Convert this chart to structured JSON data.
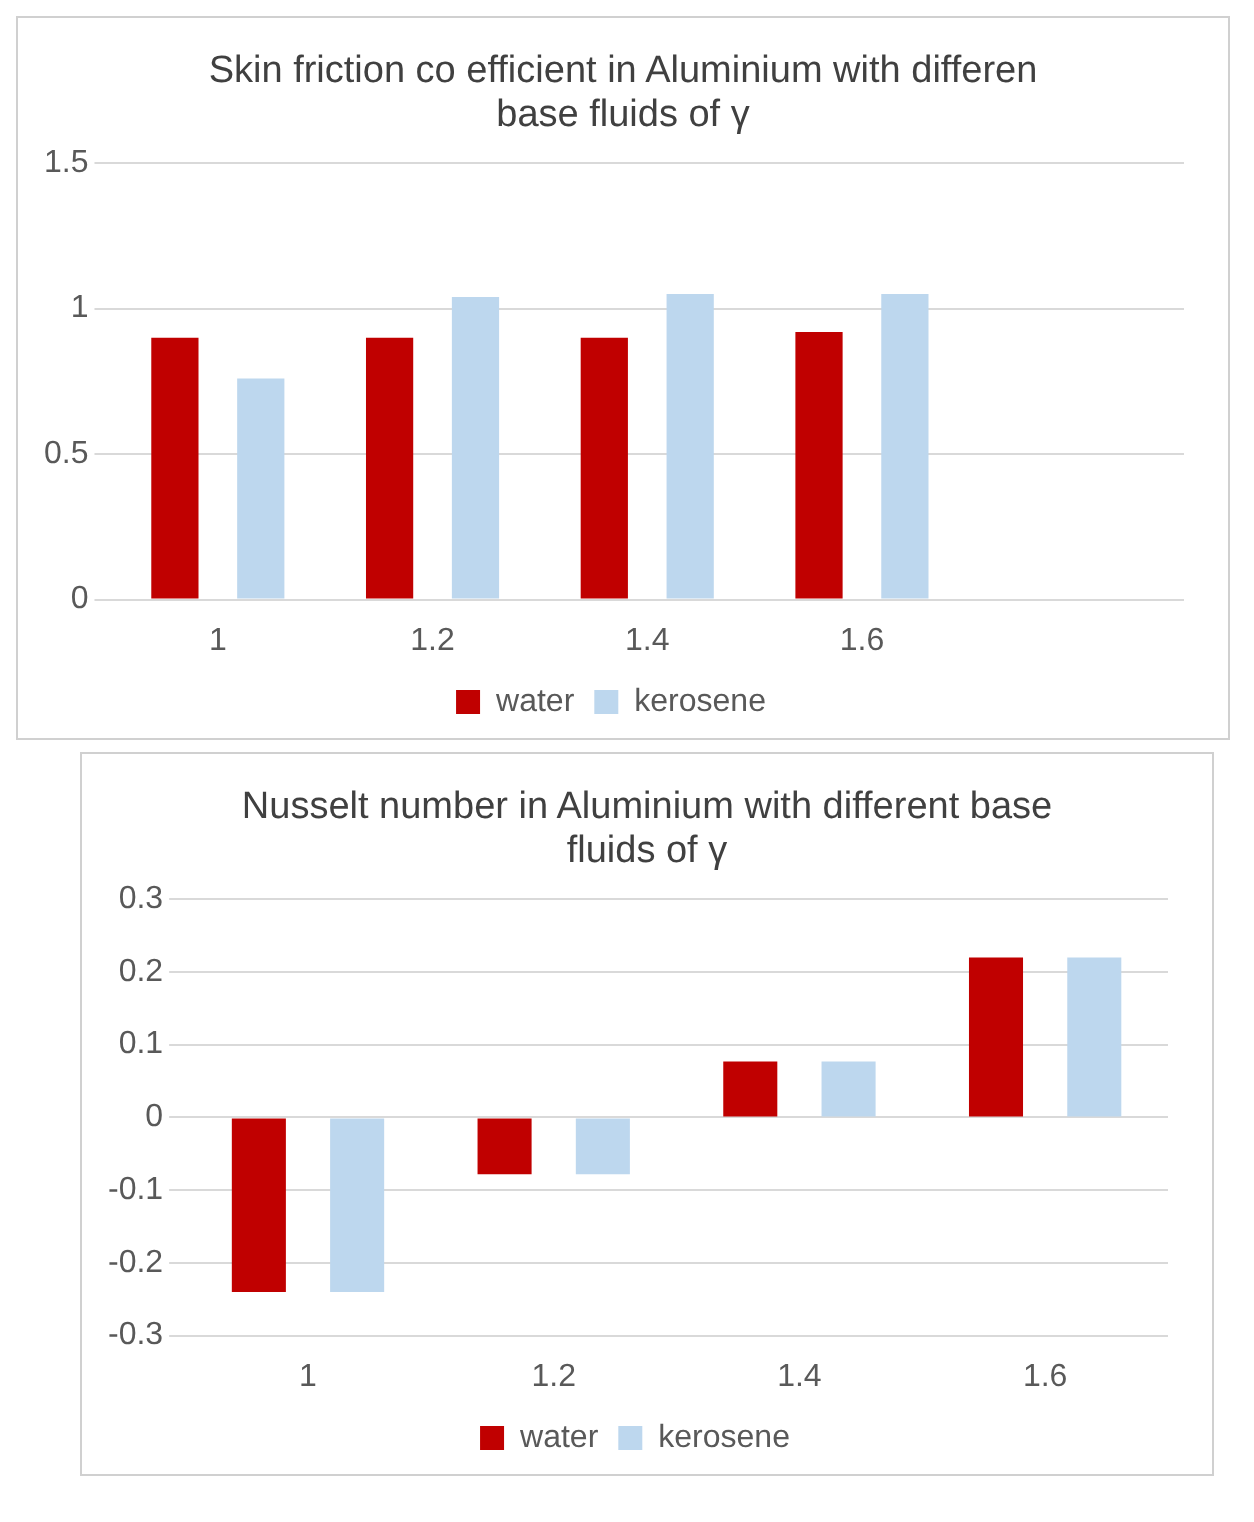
{
  "chart_data": [
    {
      "type": "bar",
      "title": "Skin friction co efficient in Aluminium with differen base fluids of γ",
      "categories": [
        "1",
        "1.2",
        "1.4",
        "1.6",
        null
      ],
      "series": [
        {
          "name": "water",
          "color": "#c00000",
          "values": [
            0.9,
            0.9,
            0.9,
            0.92,
            null
          ]
        },
        {
          "name": "kerosene",
          "color": "#bdd7ee",
          "values": [
            0.76,
            1.04,
            1.05,
            1.05,
            null
          ]
        }
      ],
      "ylim": [
        0,
        1.5
      ],
      "yticks": [
        0,
        0.5,
        1,
        1.5
      ],
      "grid": "y",
      "legend": "bottom"
    },
    {
      "type": "bar",
      "title": "Nusselt number in Aluminium with different base fluids of γ",
      "categories": [
        "1",
        "1.2",
        "1.4",
        "1.6"
      ],
      "series": [
        {
          "name": "water",
          "color": "#c00000",
          "values": [
            -0.24,
            -0.078,
            0.077,
            0.22
          ]
        },
        {
          "name": "kerosene",
          "color": "#bdd7ee",
          "values": [
            -0.24,
            -0.078,
            0.077,
            0.22
          ]
        }
      ],
      "ylim": [
        -0.3,
        0.3
      ],
      "yticks": [
        -0.3,
        -0.2,
        -0.1,
        0,
        0.1,
        0.2,
        0.3
      ],
      "grid": "y",
      "legend": "bottom"
    }
  ]
}
